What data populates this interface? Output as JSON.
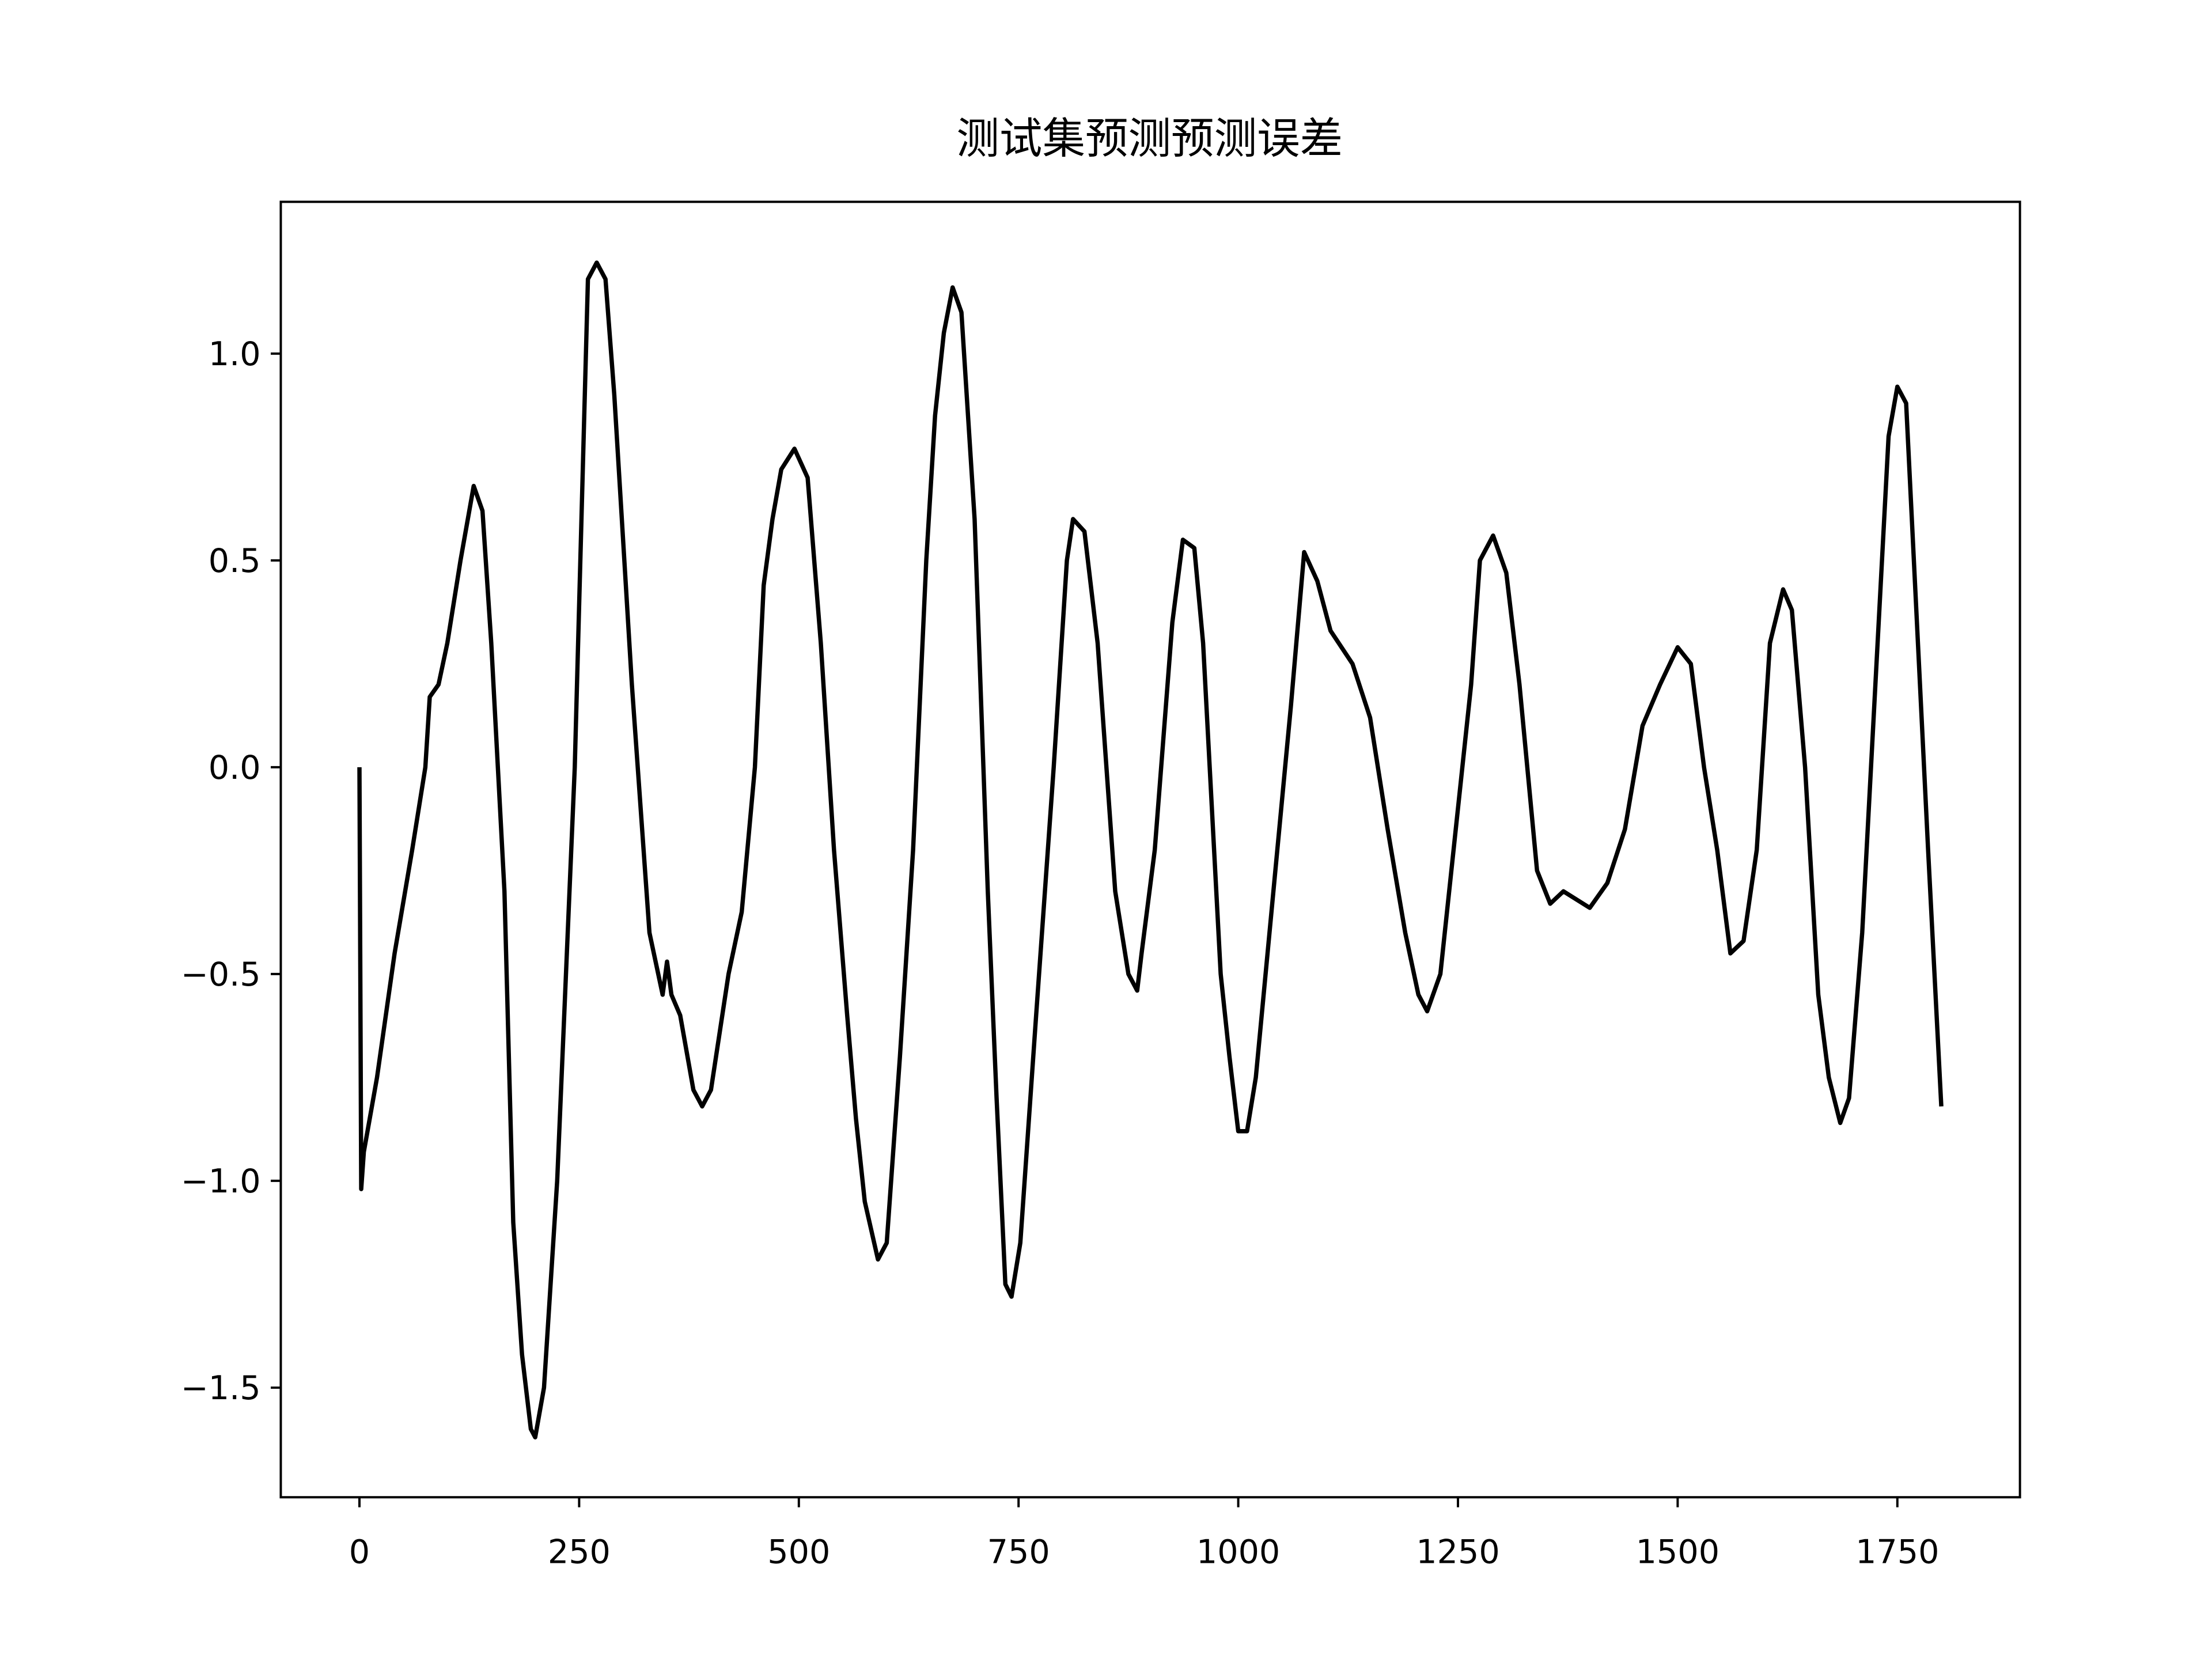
{
  "chart_data": {
    "type": "line",
    "title": "测试集预测预测误差",
    "color": "#000000",
    "x": [
      0,
      2,
      5,
      20,
      40,
      60,
      75,
      80,
      90,
      100,
      115,
      130,
      140,
      150,
      160,
      165,
      175,
      185,
      195,
      200,
      210,
      225,
      245,
      260,
      270,
      280,
      290,
      310,
      330,
      345,
      350,
      355,
      365,
      380,
      390,
      400,
      420,
      435,
      450,
      460,
      470,
      480,
      495,
      510,
      525,
      540,
      555,
      565,
      575,
      590,
      600,
      615,
      630,
      645,
      655,
      665,
      675,
      685,
      700,
      715,
      725,
      735,
      742,
      752,
      770,
      790,
      805,
      812,
      825,
      840,
      860,
      875,
      885,
      890,
      905,
      925,
      937,
      950,
      960,
      980,
      990,
      1000,
      1010,
      1020,
      1040,
      1060,
      1075,
      1090,
      1105,
      1130,
      1150,
      1170,
      1190,
      1205,
      1215,
      1230,
      1250,
      1265,
      1275,
      1290,
      1305,
      1320,
      1340,
      1355,
      1370,
      1400,
      1420,
      1440,
      1460,
      1480,
      1500,
      1515,
      1530,
      1545,
      1560,
      1575,
      1590,
      1605,
      1620,
      1630,
      1645,
      1660,
      1672,
      1685,
      1695,
      1710,
      1725,
      1740,
      1750,
      1760,
      1785,
      1800
    ],
    "values": [
      0.0,
      -1.02,
      -0.93,
      -0.75,
      -0.45,
      -0.2,
      0.0,
      0.17,
      0.2,
      0.3,
      0.5,
      0.68,
      0.62,
      0.3,
      -0.1,
      -0.3,
      -1.1,
      -1.42,
      -1.6,
      -1.62,
      -1.5,
      -1.0,
      0.0,
      1.18,
      1.22,
      1.18,
      0.9,
      0.2,
      -0.4,
      -0.55,
      -0.47,
      -0.55,
      -0.6,
      -0.78,
      -0.82,
      -0.78,
      -0.5,
      -0.35,
      0.0,
      0.44,
      0.6,
      0.72,
      0.77,
      0.7,
      0.3,
      -0.2,
      -0.6,
      -0.85,
      -1.05,
      -1.19,
      -1.15,
      -0.7,
      -0.2,
      0.5,
      0.85,
      1.05,
      1.16,
      1.1,
      0.6,
      -0.3,
      -0.8,
      -1.25,
      -1.28,
      -1.15,
      -0.6,
      0.0,
      0.5,
      0.6,
      0.57,
      0.3,
      -0.3,
      -0.5,
      -0.54,
      -0.45,
      -0.2,
      0.35,
      0.55,
      0.53,
      0.3,
      -0.5,
      -0.7,
      -0.88,
      -0.88,
      -0.75,
      -0.3,
      0.15,
      0.52,
      0.45,
      0.33,
      0.25,
      0.12,
      -0.15,
      -0.4,
      -0.55,
      -0.59,
      -0.5,
      -0.1,
      0.2,
      0.5,
      0.56,
      0.47,
      0.2,
      -0.25,
      -0.33,
      -0.3,
      -0.34,
      -0.28,
      -0.15,
      0.1,
      0.2,
      0.29,
      0.25,
      0.0,
      -0.2,
      -0.45,
      -0.42,
      -0.2,
      0.3,
      0.43,
      0.38,
      0.0,
      -0.55,
      -0.75,
      -0.86,
      -0.8,
      -0.4,
      0.2,
      0.8,
      0.92,
      0.88,
      -0.2,
      -0.82
    ],
    "xlim": [
      -89.5,
      1889.5
    ],
    "ylim": [
      -1.765,
      1.367
    ],
    "xticks": [
      0,
      250,
      500,
      750,
      1000,
      1250,
      1500,
      1750
    ],
    "yticks": [
      {
        "value": -1.5,
        "label": "−1.5"
      },
      {
        "value": -1.0,
        "label": "−1.0"
      },
      {
        "value": -0.5,
        "label": "−0.5"
      },
      {
        "value": 0,
        "label": "0.0"
      },
      {
        "value": 0.5,
        "label": "0.5"
      },
      {
        "value": 1.0,
        "label": "1.0"
      }
    ]
  }
}
